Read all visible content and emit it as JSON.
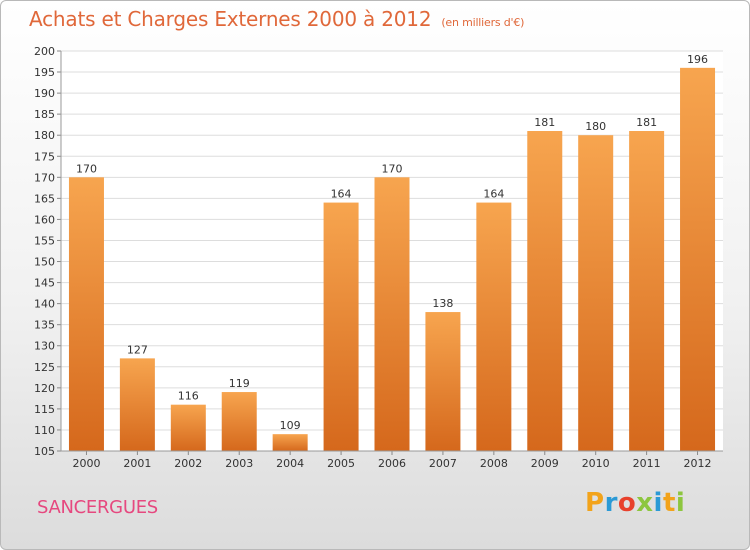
{
  "chart_data": {
    "type": "bar",
    "title": "Achats et Charges Externes 2000 à 2012",
    "subtitle": "(en milliers d'€)",
    "categories": [
      "2000",
      "2001",
      "2002",
      "2003",
      "2004",
      "2005",
      "2006",
      "2007",
      "2008",
      "2009",
      "2010",
      "2011",
      "2012"
    ],
    "values": [
      170,
      127,
      116,
      119,
      109,
      164,
      170,
      138,
      164,
      181,
      180,
      181,
      196
    ],
    "data_labels": [
      "170",
      "127",
      "116",
      "119",
      "109",
      "164",
      "170",
      "138",
      "164",
      "181",
      "180",
      "181",
      "196"
    ],
    "ylim": [
      105,
      200
    ],
    "ytick_step": 5,
    "yticks": [
      "105",
      "110",
      "115",
      "120",
      "125",
      "130",
      "135",
      "140",
      "145",
      "150",
      "155",
      "160",
      "165",
      "170",
      "175",
      "180",
      "185",
      "190",
      "195",
      "200"
    ],
    "xlabel": "",
    "ylabel": "",
    "grid": true,
    "colors": {
      "bar_top": "#f7a54f",
      "bar_bottom": "#d5681c",
      "grid": "#dddddd"
    }
  },
  "footer": {
    "place": "SANCERGUES",
    "logo_text": "Proxiti"
  }
}
